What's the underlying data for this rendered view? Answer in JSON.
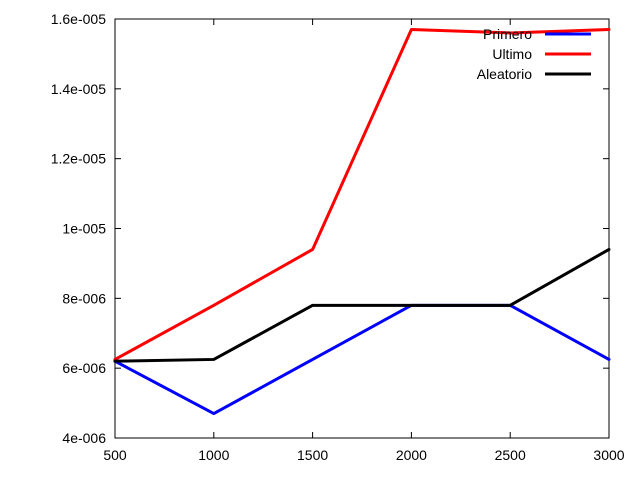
{
  "chart_data": {
    "type": "line",
    "title": "",
    "xlabel": "",
    "ylabel": "",
    "x": [
      500,
      1000,
      1500,
      2000,
      2500,
      3000
    ],
    "xlim": [
      500,
      3000
    ],
    "ylim": [
      4e-06,
      1.6e-05
    ],
    "x_ticks": [
      500,
      1000,
      1500,
      2000,
      2500,
      3000
    ],
    "x_tick_labels": [
      "500",
      "1000",
      "1500",
      "2000",
      "2500",
      "3000"
    ],
    "y_ticks": [
      4e-06,
      6e-06,
      8e-06,
      1e-05,
      1.2e-05,
      1.4e-05,
      1.6e-05
    ],
    "y_tick_labels": [
      "4e-006",
      "6e-006",
      "8e-006",
      "1e-005",
      "1.2e-005",
      "1.4e-005",
      "1.6e-005"
    ],
    "grid": false,
    "legend_position": "top-right",
    "series": [
      {
        "name": "Primero",
        "color": "#0000ff",
        "values": [
          6.2e-06,
          4.7e-06,
          6.25e-06,
          7.8e-06,
          7.8e-06,
          6.25e-06
        ]
      },
      {
        "name": "Ultimo",
        "color": "#ff0000",
        "values": [
          6.25e-06,
          7.8e-06,
          9.4e-06,
          1.57e-05,
          1.56e-05,
          1.57e-05
        ]
      },
      {
        "name": "Aleatorio",
        "color": "#000000",
        "values": [
          6.2e-06,
          6.25e-06,
          7.8e-06,
          7.8e-06,
          7.8e-06,
          9.4e-06
        ]
      }
    ]
  }
}
